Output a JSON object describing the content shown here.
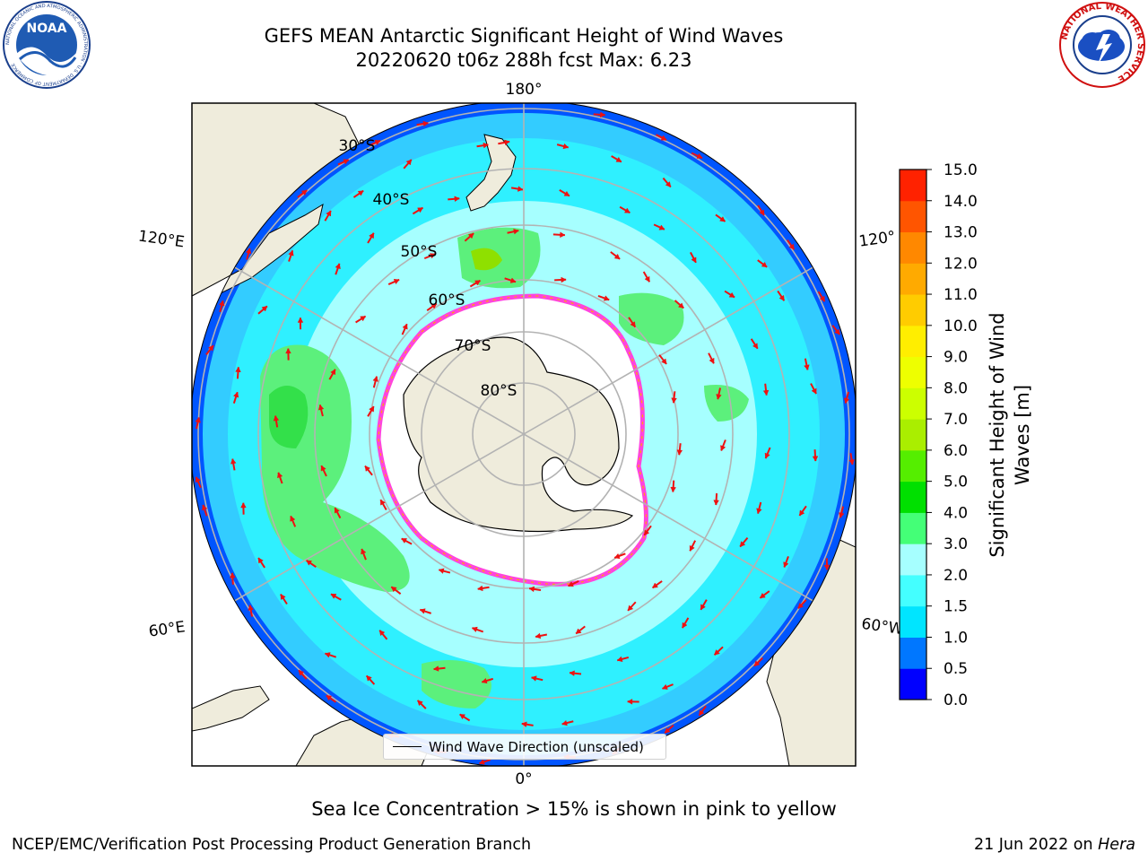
{
  "title": {
    "line1": "GEFS MEAN Antarctic Significant Height of Wind Waves",
    "line2": "20220620 t06z 288h fcst   Max: 6.23"
  },
  "logos": {
    "noaa_text": "NOAA",
    "noaa_ring": "NATIONAL OCEANIC AND ATMOSPHERIC ADMINISTRATION · U.S. DEPARTMENT OF COMMERCE",
    "nws_ring": "NATIONAL WEATHER SERVICE"
  },
  "map": {
    "longitude_labels": {
      "top": "180°",
      "bottom": "0°",
      "left_upper": "120°E",
      "left_lower": "60°E",
      "right_upper": "120°",
      "right_lower": "60°W"
    },
    "latitude_labels": [
      "30°S",
      "40°S",
      "50°S",
      "60°S",
      "70°S",
      "80°S"
    ],
    "colors": {
      "land": "#efecdc",
      "ice": "#ffffff",
      "arrow": "#ee1111",
      "grid": "#b3b3b3",
      "ice_edge": "#ff44dd"
    }
  },
  "legend": {
    "label": "Wind Wave Direction (unscaled)"
  },
  "colorbar": {
    "label": "Significant Height of Wind Waves [m]",
    "ticks": [
      "0.0",
      "0.5",
      "1.0",
      "1.5",
      "2.0",
      "3.0",
      "4.0",
      "5.0",
      "6.0",
      "7.0",
      "8.0",
      "9.0",
      "10.0",
      "11.0",
      "12.0",
      "13.0",
      "14.0",
      "15.0"
    ],
    "colors": [
      "#0000ff",
      "#0077ff",
      "#00e5ff",
      "#44ffff",
      "#a6ffff",
      "#44ff77",
      "#00e000",
      "#55ee00",
      "#aaee00",
      "#ccff00",
      "#eeff00",
      "#ffee00",
      "#ffcc00",
      "#ffaa00",
      "#ff8800",
      "#ff5500",
      "#ff2200"
    ]
  },
  "footer": {
    "note": "Sea Ice Concentration > 15% is shown in pink to yellow",
    "left": "NCEP/EMC/Verification Post Processing Product Generation Branch",
    "right_prefix": "21 Jun 2022 on ",
    "right_host": "Hera"
  }
}
